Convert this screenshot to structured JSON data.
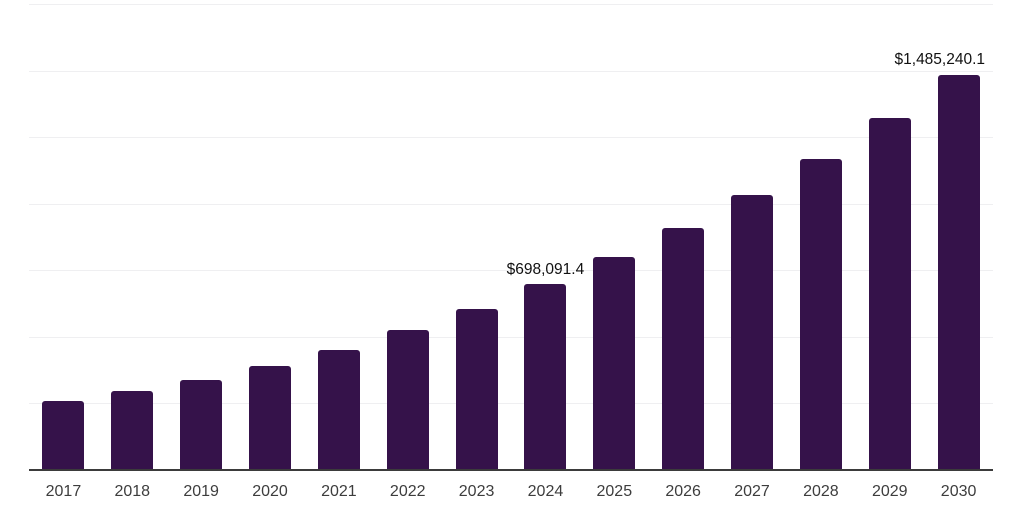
{
  "chart_data": {
    "type": "bar",
    "title": "",
    "xlabel": "",
    "ylabel": "",
    "categories": [
      "2017",
      "2018",
      "2019",
      "2020",
      "2021",
      "2022",
      "2023",
      "2024",
      "2025",
      "2026",
      "2027",
      "2028",
      "2029",
      "2030"
    ],
    "values": [
      260000,
      296000,
      337000,
      392000,
      452000,
      525000,
      605000,
      698091.4,
      799800,
      910400,
      1032200,
      1168500,
      1321300,
      1485240.1
    ],
    "bar_value_labels": [
      "",
      "",
      "",
      "",
      "",
      "",
      "",
      "$698,091.4",
      "",
      "",
      "",
      "",
      "",
      "$1,485,240.1"
    ],
    "ylim": [
      0,
      1750000
    ],
    "gridline_interval": 250000,
    "grid": "horizontal",
    "y_tick_labels_visible": false,
    "legend": "none"
  },
  "colors": {
    "background": "#ffffff",
    "bar": "#35124A",
    "gridline": "#efeff1",
    "axis_line": "#3b3b3b",
    "data_label_text": "#111111",
    "tick_label_text": "#3d3d3d"
  }
}
